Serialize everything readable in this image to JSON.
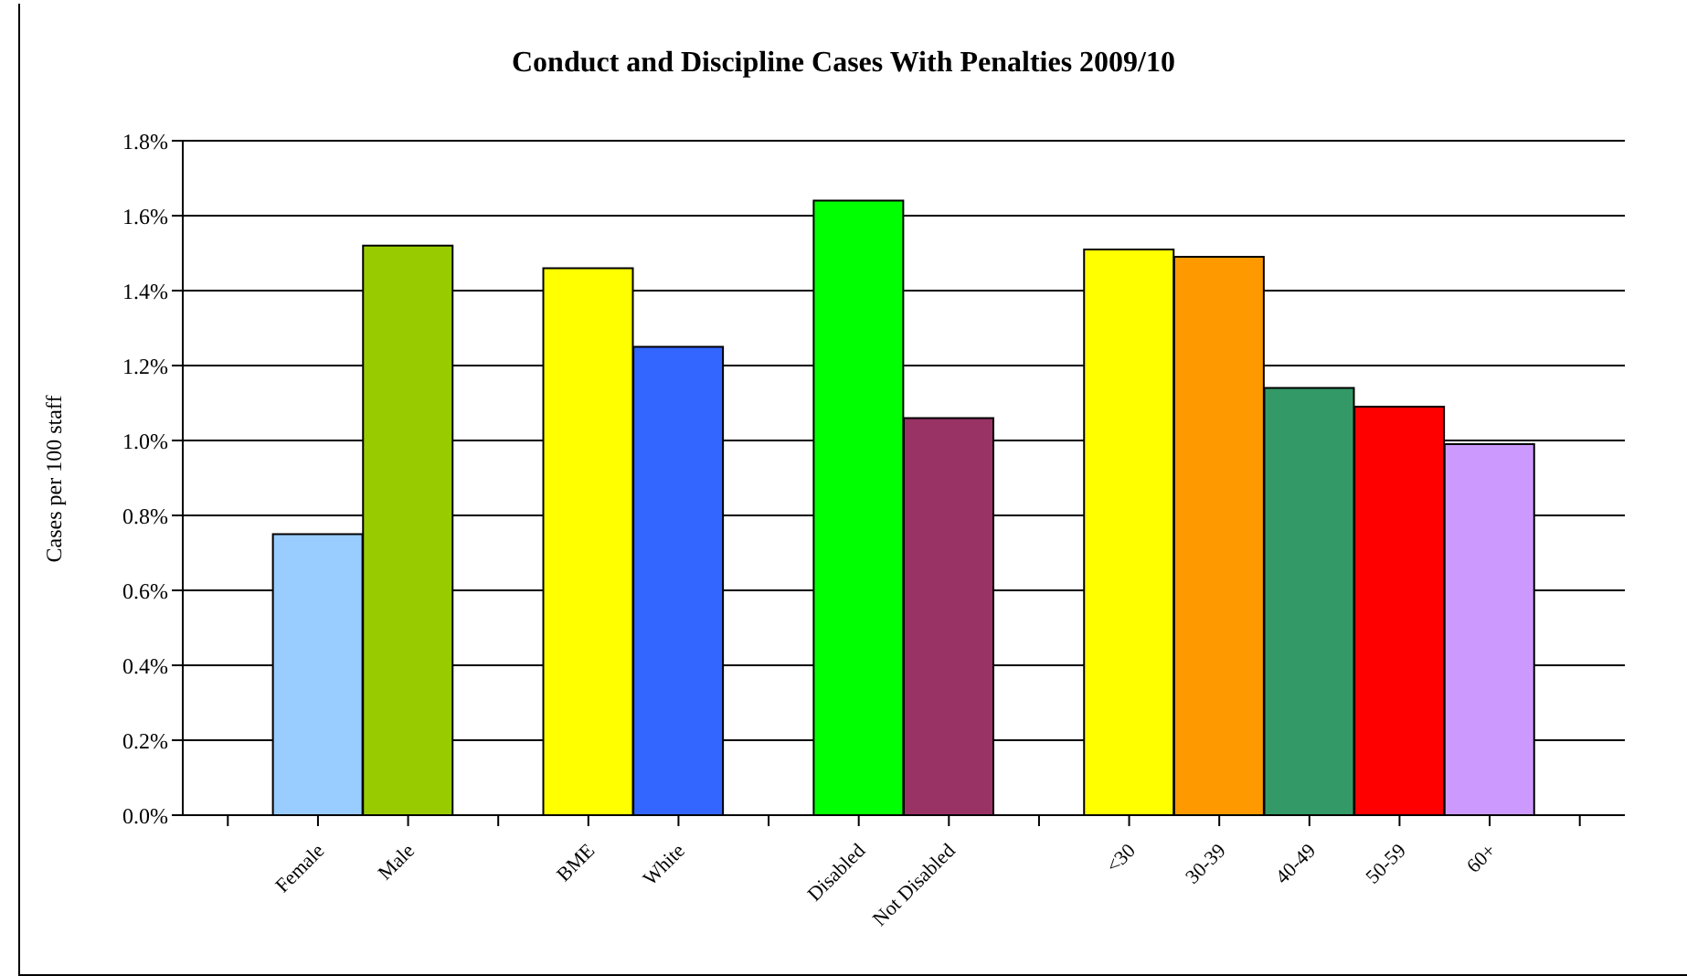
{
  "chart_data": {
    "type": "bar",
    "title": "Conduct and Discipline Cases With Penalties 2009/10",
    "ylabel": "Cases per 100 staff",
    "categories": [
      null,
      "Female",
      "Male",
      null,
      "BME",
      "White",
      null,
      "Disabled",
      "Not Disabled",
      null,
      "<30",
      "30-39",
      "40-49",
      "50-59",
      "60+",
      null
    ],
    "values": [
      null,
      0.75,
      1.52,
      null,
      1.46,
      1.25,
      null,
      1.64,
      1.06,
      null,
      1.51,
      1.49,
      1.14,
      1.09,
      0.99,
      null
    ],
    "colors": [
      "#ffffff",
      "#99ccff",
      "#99cc00",
      "#ffffff",
      "#ffff00",
      "#3366ff",
      "#ffffff",
      "#00ff00",
      "#993366",
      "#ffffff",
      "#ffff00",
      "#ff9900",
      "#339966",
      "#ff0000",
      "#cc99ff",
      "#ffffff"
    ],
    "ylim": [
      0,
      1.8
    ],
    "yticks": [
      {
        "value": 0,
        "label": "0.0%"
      },
      {
        "value": 0.2,
        "label": "0.2%"
      },
      {
        "value": 0.4,
        "label": "0.4%"
      },
      {
        "value": 0.6,
        "label": "0.6%"
      },
      {
        "value": 0.8,
        "label": "0.8%"
      },
      {
        "value": 1,
        "label": "1.0%"
      },
      {
        "value": 1.2,
        "label": "1.2%"
      },
      {
        "value": 1.4,
        "label": "1.4%"
      },
      {
        "value": 1.6,
        "label": "1.6%"
      },
      {
        "value": 1.8,
        "label": "1.8%"
      }
    ],
    "grid": "y",
    "legend": false
  }
}
